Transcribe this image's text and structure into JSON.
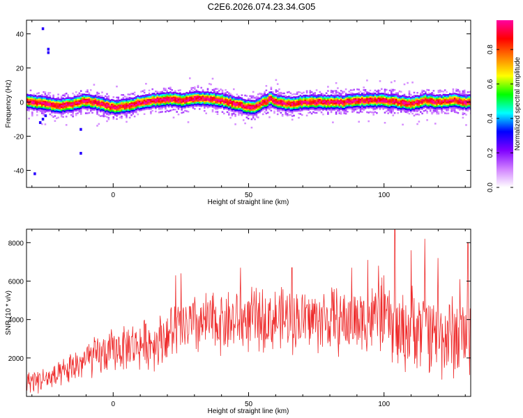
{
  "figure_title": "C2E6.2026.074.23.34.G05",
  "chart_data": [
    {
      "type": "heatmap",
      "xlabel": "Height of straight line (km)",
      "ylabel": "Frequency (Hz)",
      "xlim": [
        -32,
        132
      ],
      "ylim": [
        -50,
        48
      ],
      "x_ticks": [
        0,
        50,
        100
      ],
      "y_ticks": [
        40,
        20,
        0,
        -20,
        -40
      ],
      "grid": false,
      "colorbar": {
        "label": "Normalized spectral amplitude",
        "range": [
          0,
          0.97
        ],
        "ticks": [
          0.0,
          0.2,
          0.4,
          0.6,
          0.8
        ],
        "colors": [
          "#ffffff",
          "#d080ff",
          "#8000ff",
          "#0000ff",
          "#00ffff",
          "#00ff00",
          "#ffff00",
          "#ff8000",
          "#ff0000",
          "#ff00a0"
        ]
      },
      "ridge": {
        "x": [
          -32,
          -25,
          -20,
          -15,
          -10,
          -5,
          0,
          5,
          10,
          15,
          20,
          25,
          30,
          35,
          40,
          45,
          50,
          52,
          55,
          58,
          60,
          65,
          70,
          75,
          80,
          85,
          90,
          95,
          100,
          105,
          110,
          115,
          120,
          125,
          130,
          132
        ],
        "freq": [
          0.5,
          -1,
          -2,
          -1,
          1,
          -1,
          -3,
          -2,
          0,
          1,
          2,
          1,
          2,
          2,
          1,
          -1,
          -3,
          -3,
          0,
          2,
          0,
          -1,
          0,
          0,
          0,
          0,
          1,
          1,
          1,
          0,
          -1,
          1,
          0,
          1,
          0,
          0
        ]
      },
      "outliers": [
        {
          "x": -24,
          "freq": 29
        },
        {
          "x": -24,
          "freq": 31
        },
        {
          "x": -26,
          "freq": 43
        },
        {
          "x": -26,
          "freq": -10
        },
        {
          "x": -25,
          "freq": -8
        },
        {
          "x": -27,
          "freq": -12
        },
        {
          "x": -12,
          "freq": -16
        },
        {
          "x": -12,
          "freq": -30
        },
        {
          "x": -29,
          "freq": -42
        }
      ]
    },
    {
      "type": "line",
      "xlabel": "Height of straight line (km)",
      "ylabel": "SNR (10 * v/v)",
      "xlim": [
        -32,
        132
      ],
      "ylim": [
        0,
        8700
      ],
      "x_ticks": [
        0,
        50,
        100
      ],
      "y_ticks": [
        2000,
        4000,
        6000,
        8000
      ],
      "grid": false,
      "color": "#ee2a2a",
      "series_mean": {
        "x": [
          -32,
          -25,
          -20,
          -15,
          -10,
          -5,
          0,
          5,
          10,
          15,
          20,
          25,
          30,
          35,
          40,
          45,
          50,
          55,
          60,
          65,
          70,
          75,
          80,
          85,
          90,
          95,
          100,
          105,
          110,
          115,
          120,
          125,
          130,
          132
        ],
        "y": [
          800,
          900,
          1000,
          1500,
          1900,
          2100,
          2400,
          2600,
          2700,
          2800,
          3200,
          3500,
          3700,
          3800,
          3900,
          3900,
          4000,
          4000,
          4000,
          4000,
          4000,
          4000,
          4000,
          3900,
          4000,
          4000,
          4200,
          3300,
          3500,
          3600,
          3200,
          3100,
          3200,
          3300
        ]
      },
      "series_spread": {
        "x": [
          -32,
          -20,
          -10,
          0,
          10,
          20,
          30,
          40,
          50,
          60,
          70,
          80,
          90,
          100,
          110,
          120,
          132
        ],
        "y": [
          600,
          700,
          1000,
          1100,
          1200,
          1400,
          1600,
          1600,
          1600,
          1600,
          1600,
          1700,
          1700,
          1800,
          2100,
          2200,
          2200
        ]
      },
      "peaks": [
        {
          "x": 23,
          "y": 6300
        },
        {
          "x": 25,
          "y": 6400
        },
        {
          "x": 47,
          "y": 6700
        },
        {
          "x": 66,
          "y": 6700
        },
        {
          "x": 88,
          "y": 6700
        },
        {
          "x": 94,
          "y": 7100
        },
        {
          "x": 98,
          "y": 6800
        },
        {
          "x": 100,
          "y": 6300
        },
        {
          "x": 104,
          "y": 8700
        },
        {
          "x": 110,
          "y": 7600
        },
        {
          "x": 115,
          "y": 8200
        },
        {
          "x": 120,
          "y": 7200
        },
        {
          "x": 128,
          "y": 6100
        },
        {
          "x": 131,
          "y": 8000
        }
      ]
    }
  ]
}
